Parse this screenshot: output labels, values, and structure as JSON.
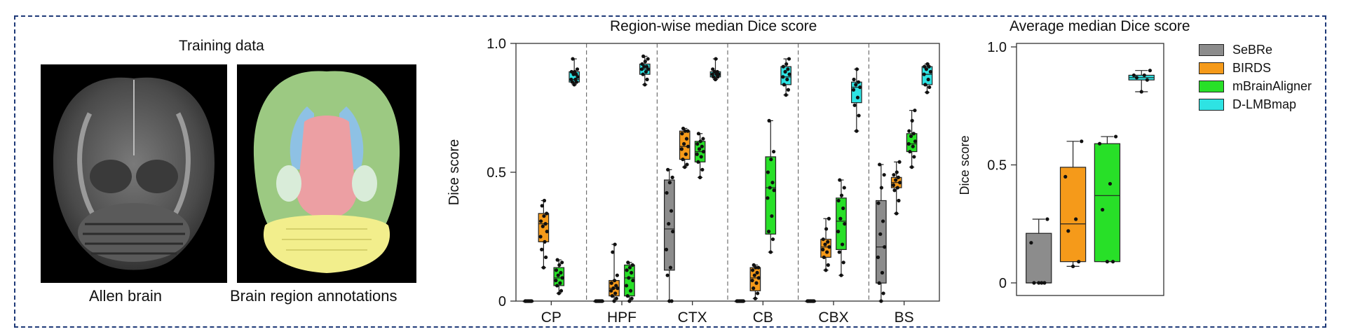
{
  "left_panel": {
    "title": "Training data",
    "caption_left": "Allen brain",
    "caption_right": "Brain region annotations"
  },
  "colors": {
    "SeBRe": "#8c8c8c",
    "BIRDS": "#f59a1a",
    "mBrainAligner": "#28e028",
    "D-LMBmap": "#2ee3e3",
    "frame": "#1f3a78"
  },
  "chart_data": [
    {
      "type": "box",
      "title": "Region-wise median Dice score",
      "ylabel": "Dice score",
      "ylim": [
        0,
        1.0
      ],
      "yticks": [
        "0",
        "0.5",
        "1.0"
      ],
      "ytick_values": [
        0,
        0.5,
        1.0
      ],
      "categories": [
        "CP",
        "HPF",
        "CTX",
        "CB",
        "CBX",
        "BS"
      ],
      "series_order": [
        "SeBRe",
        "BIRDS",
        "mBrainAligner",
        "D-LMBmap"
      ],
      "groups": [
        {
          "category": "CP",
          "boxes": [
            {
              "series": "SeBRe",
              "stats": [
                0,
                0,
                0,
                0,
                0
              ],
              "points": [
                0,
                0,
                0,
                0,
                0,
                0,
                0,
                0,
                0,
                0,
                0,
                0
              ]
            },
            {
              "series": "BIRDS",
              "stats": [
                0.13,
                0.23,
                0.3,
                0.34,
                0.39
              ],
              "points": [
                0.13,
                0.17,
                0.2,
                0.23,
                0.25,
                0.27,
                0.29,
                0.3,
                0.31,
                0.33,
                0.34,
                0.37,
                0.39
              ]
            },
            {
              "series": "mBrainAligner",
              "stats": [
                0.03,
                0.06,
                0.09,
                0.13,
                0.16
              ],
              "points": [
                0.03,
                0.04,
                0.06,
                0.07,
                0.08,
                0.09,
                0.1,
                0.11,
                0.12,
                0.14,
                0.15,
                0.16
              ]
            },
            {
              "series": "D-LMBmap",
              "stats": [
                0.84,
                0.85,
                0.86,
                0.89,
                0.94
              ],
              "points": [
                0.84,
                0.85,
                0.85,
                0.86,
                0.86,
                0.87,
                0.88,
                0.88,
                0.89,
                0.89,
                0.9,
                0.94
              ]
            }
          ]
        },
        {
          "category": "HPF",
          "boxes": [
            {
              "series": "SeBRe",
              "stats": [
                0,
                0,
                0,
                0,
                0
              ],
              "points": [
                0,
                0,
                0,
                0,
                0,
                0,
                0,
                0,
                0,
                0,
                0,
                0
              ]
            },
            {
              "series": "BIRDS",
              "stats": [
                0.0,
                0.02,
                0.05,
                0.08,
                0.22
              ],
              "points": [
                0.0,
                0.01,
                0.02,
                0.03,
                0.04,
                0.05,
                0.05,
                0.06,
                0.07,
                0.08,
                0.1,
                0.19,
                0.22
              ]
            },
            {
              "series": "mBrainAligner",
              "stats": [
                0.0,
                0.02,
                0.09,
                0.14,
                0.15
              ],
              "points": [
                0.0,
                0.01,
                0.02,
                0.04,
                0.06,
                0.08,
                0.09,
                0.11,
                0.12,
                0.13,
                0.14,
                0.15
              ]
            },
            {
              "series": "D-LMBmap",
              "stats": [
                0.84,
                0.88,
                0.9,
                0.92,
                0.95
              ],
              "points": [
                0.84,
                0.86,
                0.88,
                0.89,
                0.9,
                0.9,
                0.91,
                0.91,
                0.92,
                0.93,
                0.94,
                0.95
              ]
            }
          ]
        },
        {
          "category": "CTX",
          "boxes": [
            {
              "series": "SeBRe",
              "stats": [
                0,
                0.12,
                0.28,
                0.47,
                0.51
              ],
              "points": [
                0,
                0,
                0.1,
                0.13,
                0.2,
                0.27,
                0.3,
                0.35,
                0.42,
                0.46,
                0.48,
                0.51
              ]
            },
            {
              "series": "BIRDS",
              "stats": [
                0.52,
                0.55,
                0.6,
                0.66,
                0.67
              ],
              "points": [
                0.52,
                0.53,
                0.55,
                0.57,
                0.59,
                0.6,
                0.61,
                0.63,
                0.65,
                0.66,
                0.66,
                0.67
              ]
            },
            {
              "series": "mBrainAligner",
              "stats": [
                0.48,
                0.54,
                0.58,
                0.62,
                0.65
              ],
              "points": [
                0.48,
                0.51,
                0.54,
                0.56,
                0.57,
                0.58,
                0.59,
                0.6,
                0.61,
                0.62,
                0.63,
                0.65
              ]
            },
            {
              "series": "D-LMBmap",
              "stats": [
                0.86,
                0.87,
                0.88,
                0.89,
                0.94
              ],
              "points": [
                0.86,
                0.87,
                0.87,
                0.88,
                0.88,
                0.88,
                0.89,
                0.89,
                0.9,
                0.94
              ]
            }
          ]
        },
        {
          "category": "CB",
          "boxes": [
            {
              "series": "SeBRe",
              "stats": [
                0,
                0,
                0,
                0,
                0
              ],
              "points": [
                0,
                0,
                0,
                0,
                0,
                0,
                0,
                0,
                0,
                0,
                0,
                0
              ]
            },
            {
              "series": "BIRDS",
              "stats": [
                0.01,
                0.04,
                0.09,
                0.13,
                0.14
              ],
              "points": [
                0.01,
                0.03,
                0.05,
                0.07,
                0.08,
                0.09,
                0.1,
                0.11,
                0.12,
                0.13,
                0.13,
                0.14
              ]
            },
            {
              "series": "mBrainAligner",
              "stats": [
                0.19,
                0.26,
                0.44,
                0.56,
                0.7
              ],
              "points": [
                0.19,
                0.24,
                0.27,
                0.33,
                0.4,
                0.43,
                0.44,
                0.46,
                0.5,
                0.55,
                0.58,
                0.7
              ]
            },
            {
              "series": "D-LMBmap",
              "stats": [
                0.8,
                0.84,
                0.87,
                0.91,
                0.94
              ],
              "points": [
                0.8,
                0.82,
                0.84,
                0.86,
                0.87,
                0.88,
                0.89,
                0.9,
                0.91,
                0.92,
                0.94
              ]
            }
          ]
        },
        {
          "category": "CBX",
          "boxes": [
            {
              "series": "SeBRe",
              "stats": [
                0,
                0,
                0,
                0,
                0
              ],
              "points": [
                0,
                0,
                0,
                0,
                0,
                0,
                0,
                0,
                0,
                0,
                0,
                0
              ]
            },
            {
              "series": "BIRDS",
              "stats": [
                0.12,
                0.17,
                0.21,
                0.24,
                0.32
              ],
              "points": [
                0.12,
                0.14,
                0.17,
                0.19,
                0.2,
                0.21,
                0.22,
                0.23,
                0.24,
                0.28,
                0.32
              ]
            },
            {
              "series": "mBrainAligner",
              "stats": [
                0.1,
                0.2,
                0.31,
                0.4,
                0.47
              ],
              "points": [
                0.1,
                0.15,
                0.19,
                0.22,
                0.27,
                0.3,
                0.32,
                0.36,
                0.39,
                0.41,
                0.44,
                0.47
              ]
            },
            {
              "series": "D-LMBmap",
              "stats": [
                0.66,
                0.77,
                0.83,
                0.85,
                0.9
              ],
              "points": [
                0.66,
                0.72,
                0.76,
                0.79,
                0.82,
                0.83,
                0.84,
                0.85,
                0.86,
                0.9
              ]
            }
          ]
        },
        {
          "category": "BS",
          "boxes": [
            {
              "series": "SeBRe",
              "stats": [
                0,
                0.07,
                0.21,
                0.39,
                0.53
              ],
              "points": [
                0.0,
                0.03,
                0.07,
                0.11,
                0.17,
                0.21,
                0.26,
                0.31,
                0.38,
                0.44,
                0.49,
                0.53
              ]
            },
            {
              "series": "BIRDS",
              "stats": [
                0.34,
                0.44,
                0.46,
                0.48,
                0.54
              ],
              "points": [
                0.34,
                0.39,
                0.43,
                0.44,
                0.45,
                0.46,
                0.47,
                0.48,
                0.49,
                0.5,
                0.54
              ]
            },
            {
              "series": "mBrainAligner",
              "stats": [
                0.52,
                0.58,
                0.61,
                0.65,
                0.74
              ],
              "points": [
                0.52,
                0.56,
                0.58,
                0.6,
                0.61,
                0.62,
                0.64,
                0.65,
                0.66,
                0.7,
                0.74
              ]
            },
            {
              "series": "D-LMBmap",
              "stats": [
                0.81,
                0.84,
                0.88,
                0.91,
                0.92
              ],
              "points": [
                0.81,
                0.83,
                0.84,
                0.86,
                0.88,
                0.89,
                0.9,
                0.91,
                0.91,
                0.92
              ]
            }
          ]
        }
      ]
    },
    {
      "type": "box",
      "title": "Average median Dice score",
      "ylabel": "Dice score",
      "ylim": [
        0,
        1.0
      ],
      "yticks": [
        "0",
        "0.5",
        "1.0"
      ],
      "ytick_values": [
        0,
        0.5,
        1.0
      ],
      "series_order": [
        "SeBRe",
        "BIRDS",
        "mBrainAligner",
        "D-LMBmap"
      ],
      "boxes": [
        {
          "series": "SeBRe",
          "stats": [
            0,
            0,
            0,
            0.21,
            0.27
          ],
          "points": [
            0,
            0,
            0,
            0,
            0.17,
            0.27
          ]
        },
        {
          "series": "BIRDS",
          "stats": [
            0.07,
            0.09,
            0.25,
            0.49,
            0.6
          ],
          "points": [
            0.07,
            0.09,
            0.22,
            0.27,
            0.45,
            0.6
          ]
        },
        {
          "series": "mBrainAligner",
          "stats": [
            0.09,
            0.09,
            0.37,
            0.59,
            0.62
          ],
          "points": [
            0.09,
            0.09,
            0.31,
            0.42,
            0.59,
            0.62
          ]
        },
        {
          "series": "D-LMBmap",
          "stats": [
            0.81,
            0.86,
            0.87,
            0.88,
            0.9
          ],
          "points": [
            0.81,
            0.86,
            0.87,
            0.88,
            0.88,
            0.9
          ]
        }
      ]
    }
  ],
  "legend": {
    "placement": "right",
    "entries": [
      "SeBRe",
      "BIRDS",
      "mBrainAligner",
      "D-LMBmap"
    ]
  }
}
